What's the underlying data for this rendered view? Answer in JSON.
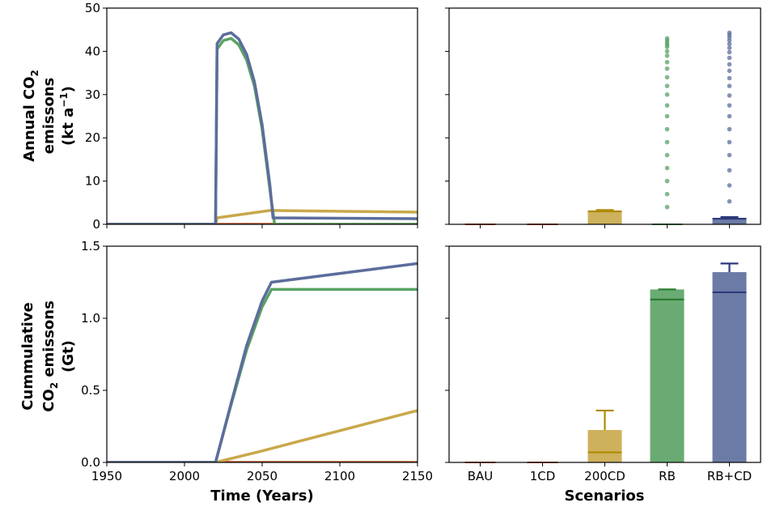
{
  "figure": {
    "top_ylabel": {
      "line1_prefix": "Annual CO",
      "line1_sub": "2",
      "line2": "emissons",
      "line3_prefix": "(kt a",
      "line3_sup": "−1",
      "line3_suffix": ")"
    },
    "bottom_ylabel": {
      "line1": "Cummulative",
      "line2_prefix": "CO",
      "line2_sub": "2",
      "line2_suffix": " emissons",
      "line3": "(Gt)"
    },
    "left_xlabel": "Time (Years)",
    "right_xlabel": "Scenarios"
  },
  "colors": {
    "BAU": "#c1542d",
    "1CD": "#c1542d",
    "200CD": "#c9a84a",
    "RB": "#5aa264",
    "RB+CD": "#5c6d9c",
    "RB_edge": "#2e7d32",
    "RBCD_edge": "#2b3a7a",
    "200CD_edge": "#b08a00"
  },
  "chart_data": [
    {
      "type": "line",
      "panel": "top-left",
      "xlim": [
        1950,
        2150
      ],
      "ylim": [
        0,
        50
      ],
      "xticks": [
        1950,
        2000,
        2050,
        2100,
        2150
      ],
      "yticks": [
        0,
        10,
        20,
        30,
        40,
        50
      ],
      "series": [
        {
          "name": "BAU",
          "color": "#c1542d",
          "x": [
            1950,
            2020,
            2150
          ],
          "y": [
            0,
            0,
            0
          ]
        },
        {
          "name": "200CD",
          "color": "#c9a84a",
          "x": [
            1950,
            2020,
            2021,
            2055,
            2150
          ],
          "y": [
            0,
            0,
            1.5,
            3.2,
            2.8
          ]
        },
        {
          "name": "RB",
          "color": "#5aa264",
          "x": [
            1950,
            2020,
            2021,
            2025,
            2030,
            2035,
            2040,
            2045,
            2050,
            2055,
            2058,
            2150
          ],
          "y": [
            0,
            0,
            40.5,
            42.5,
            43.0,
            41.5,
            38.0,
            32.0,
            22.0,
            8.0,
            0,
            0
          ]
        },
        {
          "name": "RB+CD",
          "color": "#5c6d9c",
          "x": [
            1950,
            2020,
            2021,
            2025,
            2030,
            2035,
            2040,
            2045,
            2050,
            2055,
            2057,
            2150
          ],
          "y": [
            0,
            0,
            41.8,
            43.8,
            44.3,
            42.8,
            39.3,
            33.0,
            23.0,
            9.0,
            1.5,
            1.3
          ]
        }
      ]
    },
    {
      "type": "bar",
      "panel": "top-right",
      "categories": [
        "BAU",
        "1CD",
        "200CD",
        "RB",
        "RB+CD"
      ],
      "ylim": [
        0,
        50
      ],
      "values": [
        0,
        0,
        3.0,
        0,
        1.5
      ],
      "error_upper": [
        0,
        0,
        3.3,
        0,
        1.7
      ],
      "median": [
        0,
        0,
        3.0,
        0,
        1.3
      ],
      "scatter_points": {
        "RB": [
          43.0,
          42.5,
          42.0,
          41.5,
          41.0,
          40.0,
          39.0,
          37.5,
          36.0,
          34.0,
          32.0,
          30.0,
          27.5,
          25.0,
          22.0,
          19.0,
          16.0,
          13.0,
          10.0,
          7.0,
          4.0
        ],
        "RB+CD": [
          44.3,
          43.8,
          43.2,
          42.5,
          41.7,
          40.8,
          39.8,
          38.5,
          37.0,
          35.5,
          33.8,
          32.0,
          29.8,
          27.5,
          25.0,
          22.0,
          19.0,
          16.0,
          12.5,
          9.0,
          5.3
        ]
      }
    },
    {
      "type": "line",
      "panel": "bottom-left",
      "xlim": [
        1950,
        2150
      ],
      "ylim": [
        0,
        1.5
      ],
      "xticks": [
        1950,
        2000,
        2050,
        2100,
        2150
      ],
      "yticks": [
        0.0,
        0.5,
        1.0,
        1.5
      ],
      "series": [
        {
          "name": "BAU",
          "color": "#c1542d",
          "x": [
            1950,
            2150
          ],
          "y": [
            0,
            0
          ]
        },
        {
          "name": "200CD",
          "color": "#c9a84a",
          "x": [
            1950,
            2020,
            2050,
            2100,
            2150
          ],
          "y": [
            0,
            0,
            0.08,
            0.22,
            0.36
          ]
        },
        {
          "name": "RB",
          "color": "#5aa264",
          "x": [
            1950,
            2020,
            2030,
            2040,
            2050,
            2056,
            2150
          ],
          "y": [
            0,
            0,
            0.4,
            0.78,
            1.08,
            1.2,
            1.2
          ]
        },
        {
          "name": "RB+CD",
          "color": "#5c6d9c",
          "x": [
            1950,
            2020,
            2030,
            2040,
            2050,
            2056,
            2150
          ],
          "y": [
            0,
            0,
            0.41,
            0.81,
            1.12,
            1.25,
            1.38
          ]
        }
      ]
    },
    {
      "type": "bar",
      "panel": "bottom-right",
      "categories": [
        "BAU",
        "1CD",
        "200CD",
        "RB",
        "RB+CD"
      ],
      "ylim": [
        0,
        1.5
      ],
      "values": [
        0,
        0,
        0.225,
        1.2,
        1.32
      ],
      "error_upper": [
        0,
        0,
        0.36,
        1.2,
        1.38
      ],
      "median": [
        0,
        0,
        0.07,
        1.13,
        1.18
      ]
    }
  ]
}
